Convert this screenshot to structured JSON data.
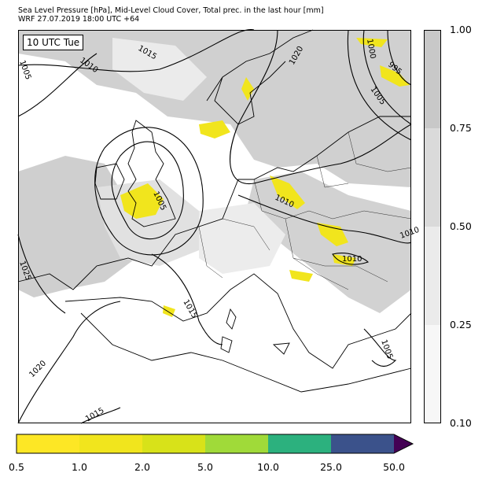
{
  "title": {
    "line1": "Sea Level Pressure [hPa], Mid-Level Cloud Cover, Total prec. in the last hour [mm]",
    "line2": "WRF 27.07.2019 18:00 UTC +64"
  },
  "valid_time_label": "10 UTC Tue",
  "isobar_labels": [
    "1005",
    "1010",
    "1015",
    "1020",
    "1000",
    "995",
    "1005",
    "1005",
    "1010",
    "1010",
    "1025",
    "1015",
    "1020",
    "1015",
    "1005",
    "1010"
  ],
  "cloud_colorbar": {
    "ticks": [
      "1.00",
      "0.75",
      "0.50",
      "0.25",
      "0.10"
    ],
    "colors": [
      "#c8c8c8",
      "#dadada",
      "#ebebeb",
      "#f7f7f7"
    ]
  },
  "precip_colorbar": {
    "ticks": [
      "0.5",
      "1.0",
      "2.0",
      "5.0",
      "10.0",
      "25.0",
      "50.0"
    ],
    "colors": [
      "#fde725",
      "#f1e51d",
      "#d8e219",
      "#a0da39",
      "#2cb17e",
      "#3b528b",
      "#440154"
    ]
  }
}
